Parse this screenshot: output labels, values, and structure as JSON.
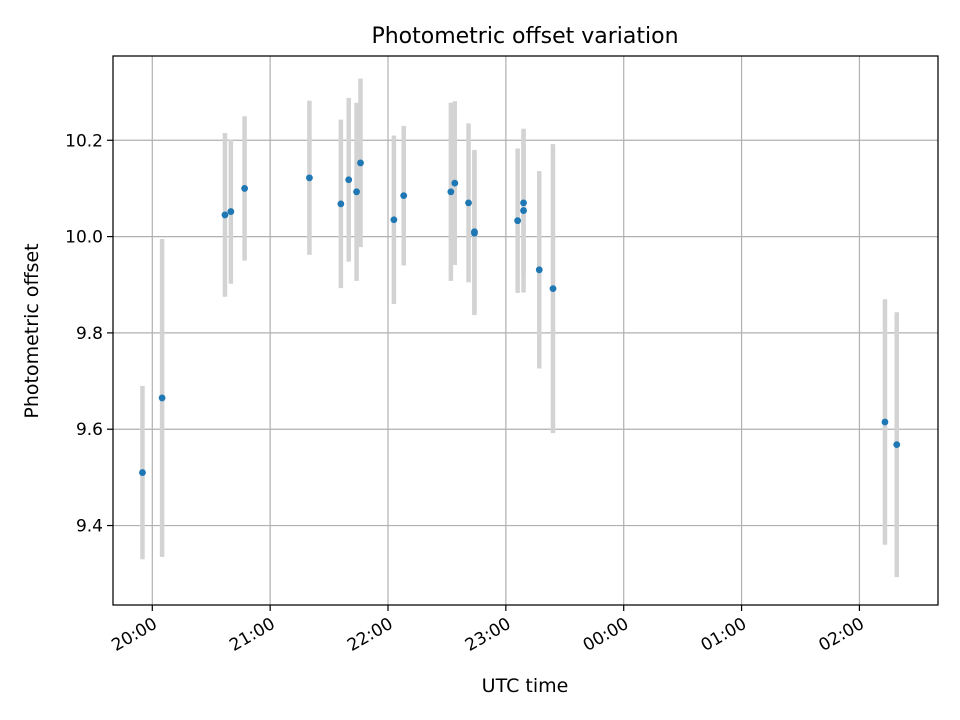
{
  "chart_data": {
    "type": "scatter",
    "title": "Photometric offset variation",
    "xlabel": "UTC time",
    "ylabel": "Photometric offset",
    "x_is_time": true,
    "xlim": [
      "19:40",
      "02:40"
    ],
    "ylim": [
      9.235,
      10.375
    ],
    "grid": true,
    "x_ticks": [
      "20:00",
      "21:00",
      "22:00",
      "23:00",
      "00:00",
      "01:00",
      "02:00"
    ],
    "y_ticks": [
      "9.4",
      "9.6",
      "9.8",
      "10.0",
      "10.2"
    ],
    "y_tick_values": [
      9.4,
      9.6,
      9.8,
      10.0,
      10.2
    ],
    "point_color": "#1f77b4",
    "errorbar_color": "#d3d3d3",
    "points": [
      {
        "t": "19:55",
        "y": 9.51,
        "err": 0.18
      },
      {
        "t": "20:05",
        "y": 9.665,
        "err": 0.33
      },
      {
        "t": "20:37",
        "y": 10.045,
        "err": 0.17
      },
      {
        "t": "20:40",
        "y": 10.052,
        "err": 0.15
      },
      {
        "t": "20:47",
        "y": 10.1,
        "err": 0.15
      },
      {
        "t": "21:20",
        "y": 10.122,
        "err": 0.16
      },
      {
        "t": "21:36",
        "y": 10.068,
        "err": 0.175
      },
      {
        "t": "21:40",
        "y": 10.118,
        "err": 0.17
      },
      {
        "t": "21:44",
        "y": 10.093,
        "err": 0.185
      },
      {
        "t": "21:46",
        "y": 10.153,
        "err": 0.175
      },
      {
        "t": "22:03",
        "y": 10.035,
        "err": 0.175
      },
      {
        "t": "22:08",
        "y": 10.085,
        "err": 0.145
      },
      {
        "t": "22:32",
        "y": 10.093,
        "err": 0.185
      },
      {
        "t": "22:34",
        "y": 10.111,
        "err": 0.17
      },
      {
        "t": "22:41",
        "y": 10.07,
        "err": 0.165
      },
      {
        "t": "22:44",
        "y": 10.007,
        "err": 0.17
      },
      {
        "t": "22:44",
        "y": 10.01,
        "err": 0.17
      },
      {
        "t": "23:06",
        "y": 10.033,
        "err": 0.15
      },
      {
        "t": "23:09",
        "y": 10.054,
        "err": 0.17
      },
      {
        "t": "23:09",
        "y": 10.07,
        "err": 0.15
      },
      {
        "t": "23:17",
        "y": 9.931,
        "err": 0.205
      },
      {
        "t": "23:24",
        "y": 9.892,
        "err": 0.3
      },
      {
        "t": "02:13",
        "y": 9.615,
        "err": 0.255
      },
      {
        "t": "02:19",
        "y": 9.568,
        "err": 0.275
      }
    ]
  }
}
